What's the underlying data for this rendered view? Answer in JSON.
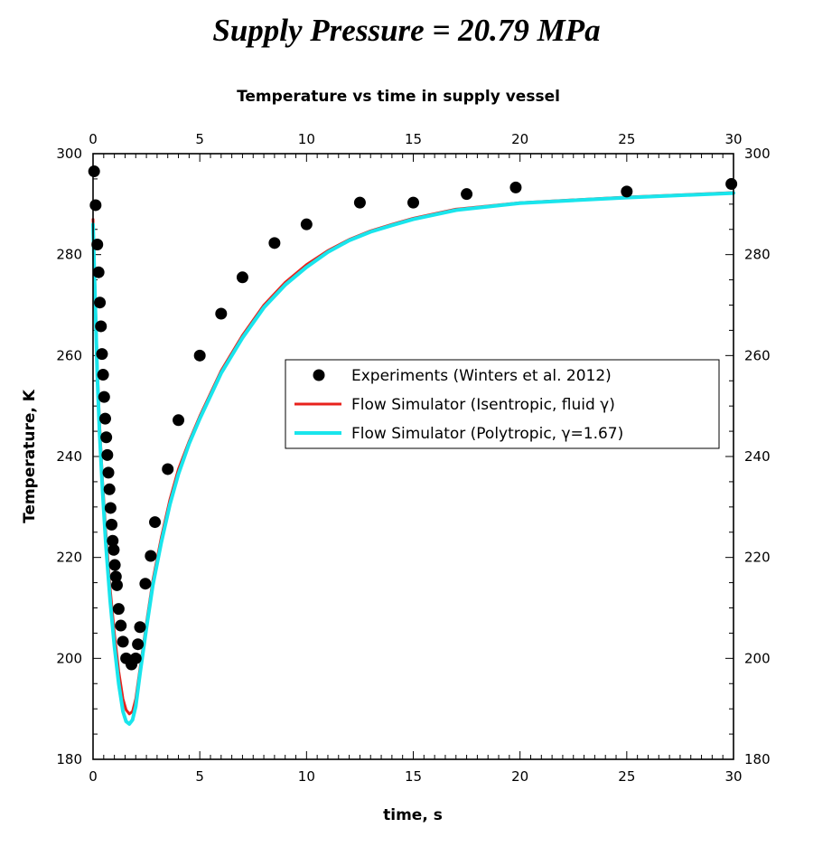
{
  "page_title": "Supply Pressure = 20.79 MPa",
  "chart_data": {
    "type": "line",
    "title": "Temperature vs time in supply vessel",
    "xlabel": "time, s",
    "ylabel": "Temperature, K",
    "xlim": [
      0,
      30
    ],
    "ylim": [
      180,
      300
    ],
    "x_ticks": [
      0,
      5,
      10,
      15,
      20,
      25,
      30
    ],
    "y_ticks": [
      180,
      200,
      220,
      240,
      260,
      280,
      300
    ],
    "grid": false,
    "legend_position": "center-right",
    "colors": {
      "experiments": "#000000",
      "isentropic": "#e8221c",
      "polytropic": "#19e5ec"
    },
    "series": [
      {
        "name": "Experiments (Winters et al. 2012)",
        "style": "markers",
        "x": [
          0.05,
          0.12,
          0.2,
          0.26,
          0.32,
          0.37,
          0.42,
          0.47,
          0.52,
          0.57,
          0.62,
          0.67,
          0.72,
          0.77,
          0.82,
          0.87,
          0.92,
          0.97,
          1.02,
          1.07,
          1.12,
          1.2,
          1.3,
          1.4,
          1.55,
          1.8,
          2.0,
          2.1,
          2.2,
          2.45,
          2.7,
          2.9,
          3.5,
          4.0,
          5.0,
          6.0,
          7.0,
          8.5,
          10.0,
          12.5,
          15.0,
          17.5,
          19.8,
          25.0,
          29.9
        ],
        "y": [
          296.5,
          289.8,
          282.0,
          276.5,
          270.5,
          265.8,
          260.3,
          256.2,
          251.8,
          247.5,
          243.8,
          240.3,
          236.8,
          233.5,
          229.8,
          226.5,
          223.3,
          221.5,
          218.5,
          216.2,
          214.5,
          209.8,
          206.5,
          203.3,
          200.0,
          198.8,
          200.0,
          202.8,
          206.2,
          214.8,
          220.3,
          227.0,
          237.5,
          247.2,
          260.0,
          268.3,
          275.5,
          282.3,
          286.0,
          290.3,
          290.3,
          292.0,
          293.3,
          292.5,
          294.0
        ]
      },
      {
        "name": "Flow Simulator (Isentropic, fluid γ)",
        "style": "line",
        "x": [
          0.0,
          0.1,
          0.2,
          0.3,
          0.45,
          0.6,
          0.8,
          1.0,
          1.2,
          1.4,
          1.55,
          1.7,
          1.85,
          2.0,
          2.2,
          2.5,
          2.8,
          3.2,
          3.6,
          4.0,
          4.5,
          5.0,
          6.0,
          7.0,
          8.0,
          9.0,
          10.0,
          11.0,
          12.0,
          13.0,
          14.0,
          15.0,
          17.0,
          20.0,
          25.0,
          30.0
        ],
        "y": [
          287.0,
          272.0,
          258.0,
          247.0,
          235.0,
          225.0,
          214.0,
          205.0,
          197.5,
          192.0,
          189.8,
          189.0,
          189.5,
          192.0,
          198.0,
          207.0,
          215.5,
          224.0,
          231.5,
          237.5,
          243.0,
          248.0,
          257.0,
          264.0,
          270.0,
          274.5,
          278.0,
          280.8,
          283.0,
          284.7,
          286.0,
          287.2,
          289.0,
          290.3,
          291.4,
          292.3
        ]
      },
      {
        "name": "Flow Simulator (Polytropic, γ=1.67)",
        "style": "line",
        "x": [
          0.0,
          0.1,
          0.2,
          0.3,
          0.45,
          0.6,
          0.8,
          1.0,
          1.2,
          1.4,
          1.55,
          1.7,
          1.85,
          2.0,
          2.2,
          2.5,
          2.8,
          3.2,
          3.6,
          4.0,
          4.5,
          5.0,
          6.0,
          7.0,
          8.0,
          9.0,
          10.0,
          11.0,
          12.0,
          13.0,
          14.0,
          15.0,
          17.0,
          20.0,
          25.0,
          30.0
        ],
        "y": [
          286.0,
          270.5,
          256.0,
          245.0,
          233.0,
          222.5,
          211.5,
          202.5,
          195.0,
          189.5,
          187.5,
          187.0,
          187.8,
          190.5,
          197.0,
          206.0,
          214.5,
          223.0,
          230.5,
          236.5,
          242.5,
          247.5,
          256.5,
          263.5,
          269.5,
          274.0,
          277.5,
          280.5,
          282.8,
          284.5,
          285.8,
          287.0,
          288.8,
          290.2,
          291.3,
          292.2
        ]
      }
    ]
  }
}
